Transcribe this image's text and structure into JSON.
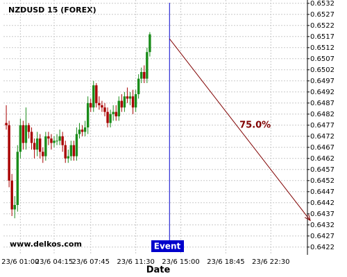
{
  "chart_data": {
    "type": "candlestick",
    "title": "NZDUSD 15 (FOREX)",
    "watermark": "www.delkos.com",
    "x_label": "Date",
    "x": [
      0,
      1,
      2,
      3,
      4,
      5,
      6,
      7,
      8,
      9,
      10,
      11,
      12,
      13,
      14,
      15,
      16,
      17,
      18,
      19,
      20,
      21,
      22,
      23,
      24,
      25,
      26,
      27,
      28,
      29,
      30,
      31,
      32,
      33,
      34,
      35,
      36,
      37,
      38,
      39,
      40,
      41,
      42,
      43,
      44,
      45,
      46,
      47,
      48,
      49,
      50,
      51
    ],
    "open": [
      0.6478,
      0.6477,
      0.6452,
      0.6439,
      0.6441,
      0.6465,
      0.6477,
      0.6469,
      0.6477,
      0.6474,
      0.6469,
      0.6466,
      0.6471,
      0.6465,
      0.6463,
      0.6472,
      0.6471,
      0.6469,
      0.647,
      0.647,
      0.6472,
      0.6468,
      0.6462,
      0.6463,
      0.6468,
      0.6463,
      0.6473,
      0.6475,
      0.6474,
      0.6476,
      0.6487,
      0.6485,
      0.6495,
      0.6487,
      0.6486,
      0.6485,
      0.6483,
      0.6478,
      0.6482,
      0.6483,
      0.6481,
      0.6488,
      0.6485,
      0.649,
      0.6489,
      0.649,
      0.6485,
      0.6491,
      0.6498,
      0.6501,
      0.6498,
      0.651
    ],
    "high": [
      0.6486,
      0.6479,
      0.6455,
      0.6445,
      0.6468,
      0.648,
      0.6479,
      0.6485,
      0.6478,
      0.6476,
      0.6471,
      0.6474,
      0.6473,
      0.6467,
      0.6474,
      0.6474,
      0.6473,
      0.6472,
      0.6473,
      0.6475,
      0.6474,
      0.647,
      0.6466,
      0.647,
      0.647,
      0.6476,
      0.6478,
      0.6477,
      0.6479,
      0.649,
      0.6489,
      0.6497,
      0.6496,
      0.649,
      0.6488,
      0.6487,
      0.6485,
      0.6484,
      0.6486,
      0.6486,
      0.649,
      0.6491,
      0.6492,
      0.6494,
      0.6492,
      0.6493,
      0.6493,
      0.65,
      0.6503,
      0.6504,
      0.6512,
      0.6519
    ],
    "low": [
      0.6475,
      0.6449,
      0.6436,
      0.6435,
      0.6438,
      0.6462,
      0.6466,
      0.6466,
      0.6471,
      0.6466,
      0.6462,
      0.6463,
      0.6462,
      0.646,
      0.6461,
      0.6468,
      0.6466,
      0.6467,
      0.6468,
      0.6468,
      0.6465,
      0.646,
      0.646,
      0.6461,
      0.6461,
      0.6461,
      0.6471,
      0.6472,
      0.6472,
      0.6473,
      0.6483,
      0.6483,
      0.6485,
      0.6484,
      0.6483,
      0.6481,
      0.6476,
      0.6476,
      0.6479,
      0.6479,
      0.6479,
      0.6483,
      0.6483,
      0.6487,
      0.6486,
      0.6482,
      0.6483,
      0.6489,
      0.6496,
      0.6496,
      0.6496,
      0.6508
    ],
    "close": [
      0.6477,
      0.6452,
      0.6439,
      0.6441,
      0.6465,
      0.6477,
      0.6469,
      0.6477,
      0.6474,
      0.6469,
      0.6466,
      0.6471,
      0.6465,
      0.6463,
      0.6472,
      0.6471,
      0.6469,
      0.647,
      0.647,
      0.6472,
      0.6468,
      0.6462,
      0.6463,
      0.6468,
      0.6463,
      0.6473,
      0.6475,
      0.6474,
      0.6476,
      0.6487,
      0.6485,
      0.6495,
      0.6487,
      0.6486,
      0.6485,
      0.6483,
      0.6478,
      0.6482,
      0.6483,
      0.6481,
      0.6488,
      0.6485,
      0.649,
      0.6489,
      0.649,
      0.6485,
      0.6491,
      0.6498,
      0.6501,
      0.6498,
      0.651,
      0.6518
    ],
    "up_color": "#1a8c1a",
    "down_color": "#a80000",
    "xlim": [
      -1,
      107
    ],
    "xticks": [
      {
        "value": 5,
        "label": "23/6 01:00"
      },
      {
        "value": 17,
        "label": "23/6 04:15"
      },
      {
        "value": 30,
        "label": "23/6 07:45"
      },
      {
        "value": 46,
        "label": "23/6 11:30"
      },
      {
        "value": 62,
        "label": "23/6 15:00"
      },
      {
        "value": 78,
        "label": "23/6 18:45"
      },
      {
        "value": 94,
        "label": "23/6 22:30"
      }
    ],
    "ylim": [
      0.64185,
      0.65335
    ],
    "yticks": [
      0.6422,
      0.6427,
      0.6432,
      0.6437,
      0.6442,
      0.6447,
      0.6452,
      0.6457,
      0.6462,
      0.6467,
      0.6472,
      0.6477,
      0.6482,
      0.6487,
      0.6492,
      0.6497,
      0.6502,
      0.6507,
      0.6512,
      0.6517,
      0.6522,
      0.6527,
      0.6532
    ],
    "grid": true,
    "event": {
      "x": 58,
      "label": "Event",
      "color": "#0000cc"
    },
    "projection": {
      "x": [
        58,
        108
      ],
      "y": [
        0.6516,
        0.6434
      ],
      "label": "75.0%",
      "color": "#800000"
    }
  }
}
